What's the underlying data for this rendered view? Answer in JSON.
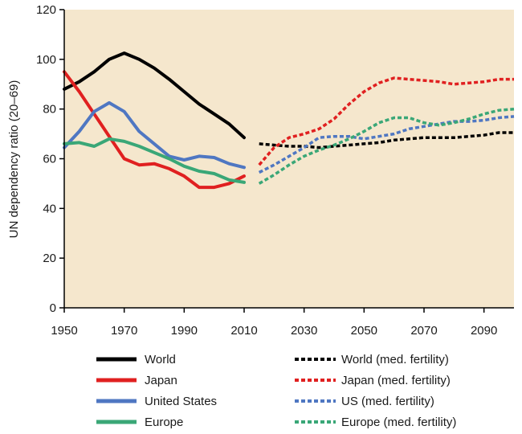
{
  "chart_data": {
    "type": "line",
    "title": "",
    "xlabel": "",
    "ylabel": "UN dependency ratio (20–69)",
    "xlim": [
      1950,
      2100
    ],
    "ylim": [
      0,
      120
    ],
    "x_ticks": [
      1950,
      1970,
      1990,
      2010,
      2030,
      2050,
      2070,
      2090
    ],
    "y_ticks": [
      0,
      20,
      40,
      60,
      80,
      100,
      120
    ],
    "shaded_region": {
      "from": 1950,
      "to": 2100,
      "color": "#f5e7cd"
    },
    "series": [
      {
        "name": "World",
        "style": "solid",
        "color": "#000000",
        "x": [
          1950,
          1955,
          1960,
          1965,
          1970,
          1975,
          1980,
          1985,
          1990,
          1995,
          2000,
          2005,
          2010
        ],
        "values": [
          88,
          91,
          95,
          100,
          102.5,
          100,
          96.5,
          92,
          87,
          82,
          78,
          74,
          68.5
        ]
      },
      {
        "name": "Japan",
        "style": "solid",
        "color": "#e02020",
        "x": [
          1950,
          1955,
          1960,
          1965,
          1970,
          1975,
          1980,
          1985,
          1990,
          1995,
          2000,
          2005,
          2010
        ],
        "values": [
          95,
          87,
          78,
          69,
          60,
          57.5,
          58,
          56,
          53,
          48.5,
          48.5,
          50,
          53
        ]
      },
      {
        "name": "United States",
        "style": "solid",
        "color": "#4f77c2",
        "x": [
          1950,
          1955,
          1960,
          1965,
          1970,
          1975,
          1980,
          1985,
          1990,
          1995,
          2000,
          2005,
          2010
        ],
        "values": [
          64.5,
          71,
          79,
          82.5,
          79,
          71,
          66,
          61,
          59.5,
          61,
          60.5,
          58,
          56.5
        ]
      },
      {
        "name": "Europe",
        "style": "solid",
        "color": "#3aa777",
        "x": [
          1950,
          1955,
          1960,
          1965,
          1970,
          1975,
          1980,
          1985,
          1990,
          1995,
          2000,
          2005,
          2010
        ],
        "values": [
          66,
          66.5,
          65,
          68,
          67,
          65,
          62.5,
          60,
          57,
          55,
          54,
          51.5,
          50.5
        ]
      },
      {
        "name": "World (med. fertility)",
        "style": "dashed",
        "color": "#000000",
        "x": [
          2015,
          2020,
          2025,
          2030,
          2035,
          2040,
          2045,
          2050,
          2055,
          2060,
          2065,
          2070,
          2075,
          2080,
          2085,
          2090,
          2095,
          2100
        ],
        "values": [
          66,
          65.5,
          65,
          65,
          64.5,
          65,
          65.5,
          66,
          66.5,
          67.5,
          68,
          68.5,
          68.5,
          68.5,
          69,
          69.5,
          70.5,
          70.5
        ]
      },
      {
        "name": "Japan (med. fertility)",
        "style": "dashed",
        "color": "#e02020",
        "x": [
          2015,
          2020,
          2025,
          2030,
          2035,
          2040,
          2045,
          2050,
          2055,
          2060,
          2065,
          2070,
          2075,
          2080,
          2085,
          2090,
          2095,
          2100
        ],
        "values": [
          57.5,
          64.5,
          68.5,
          70,
          72,
          76,
          82,
          87,
          90.5,
          92.5,
          92,
          91.5,
          91,
          90,
          90.5,
          91,
          92,
          92
        ]
      },
      {
        "name": "US (med. fertility)",
        "style": "dashed",
        "color": "#4f77c2",
        "x": [
          2015,
          2020,
          2025,
          2030,
          2035,
          2040,
          2045,
          2050,
          2055,
          2060,
          2065,
          2070,
          2075,
          2080,
          2085,
          2090,
          2095,
          2100
        ],
        "values": [
          54.5,
          57.5,
          61,
          64.5,
          68.5,
          69,
          69,
          68,
          69,
          70,
          72,
          73,
          74,
          75,
          75,
          75.5,
          76.5,
          77
        ]
      },
      {
        "name": "Europe (med. fertility)",
        "style": "dashed",
        "color": "#3aa777",
        "x": [
          2015,
          2020,
          2025,
          2030,
          2035,
          2040,
          2045,
          2050,
          2055,
          2060,
          2065,
          2070,
          2075,
          2080,
          2085,
          2090,
          2095,
          2100
        ],
        "values": [
          50,
          53.5,
          57.5,
          61,
          63.5,
          65.5,
          68,
          71,
          74.5,
          76.5,
          76.5,
          74.5,
          73.5,
          74.5,
          76,
          78,
          79.5,
          80
        ]
      }
    ]
  },
  "legend": {
    "left": [
      {
        "label": "World",
        "color": "#000000",
        "style": "solid"
      },
      {
        "label": "Japan",
        "color": "#e02020",
        "style": "solid"
      },
      {
        "label": "United States",
        "color": "#4f77c2",
        "style": "solid"
      },
      {
        "label": "Europe",
        "color": "#3aa777",
        "style": "solid"
      }
    ],
    "right": [
      {
        "label": "World (med. fertility)",
        "color": "#000000",
        "style": "dashed"
      },
      {
        "label": "Japan (med. fertility)",
        "color": "#e02020",
        "style": "dashed"
      },
      {
        "label": "US (med. fertility)",
        "color": "#4f77c2",
        "style": "dashed"
      },
      {
        "label": "Europe (med. fertility)",
        "color": "#3aa777",
        "style": "dashed"
      }
    ]
  }
}
